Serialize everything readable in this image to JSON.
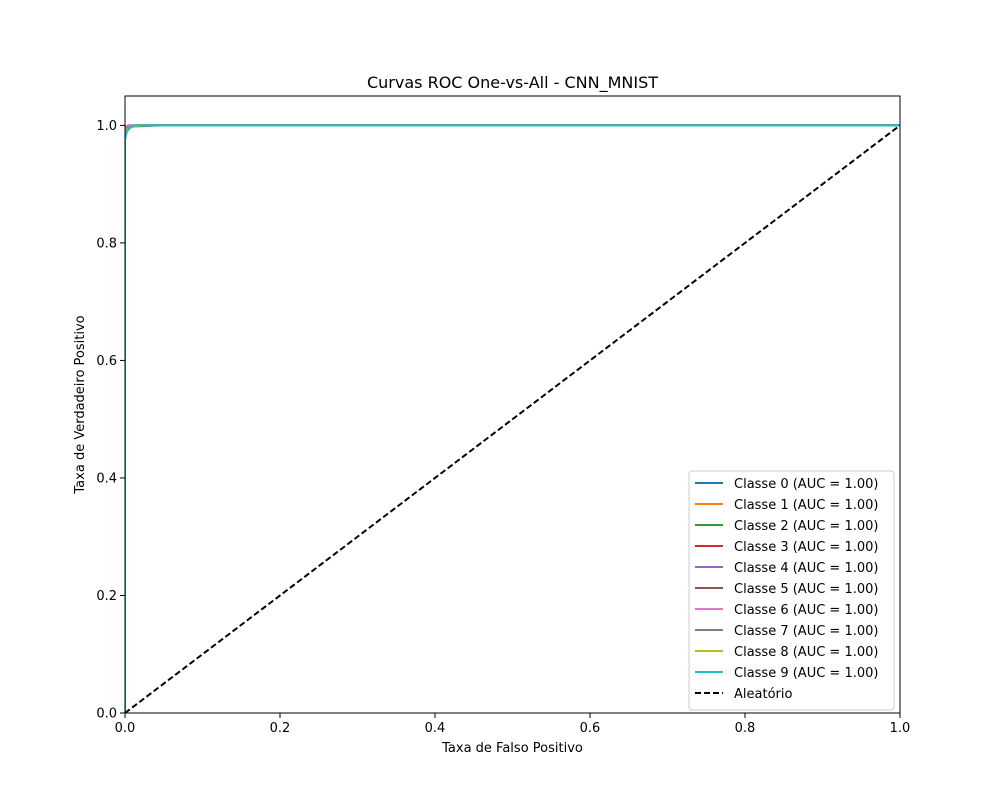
{
  "chart_data": {
    "type": "line",
    "title": "Curvas ROC One-vs-All - CNN_MNIST",
    "xlabel": "Taxa de Falso Positivo",
    "ylabel": "Taxa de Verdadeiro Positivo",
    "xlim": [
      0.0,
      1.0
    ],
    "ylim": [
      0.0,
      1.05
    ],
    "x_ticks": [
      0.0,
      0.2,
      0.4,
      0.6,
      0.8,
      1.0
    ],
    "y_ticks": [
      0.0,
      0.2,
      0.4,
      0.6,
      0.8,
      1.0
    ],
    "x_tick_labels": [
      "0.0",
      "0.2",
      "0.4",
      "0.6",
      "0.8",
      "1.0"
    ],
    "y_tick_labels": [
      "0.0",
      "0.2",
      "0.4",
      "0.6",
      "0.8",
      "1.0"
    ],
    "grid": false,
    "legend_position": "lower-right",
    "series": [
      {
        "name": "Classe 0 (AUC = 1.00)",
        "color": "#1f77b4",
        "style": "solid",
        "points": [
          [
            0.0,
            0.0
          ],
          [
            0.0,
            0.992
          ],
          [
            0.001,
            0.996
          ],
          [
            0.003,
            0.999
          ],
          [
            0.006,
            1.0
          ],
          [
            1.0,
            1.0
          ]
        ]
      },
      {
        "name": "Classe 1 (AUC = 1.00)",
        "color": "#ff7f0e",
        "style": "solid",
        "points": [
          [
            0.0,
            0.0
          ],
          [
            0.0,
            0.995
          ],
          [
            0.001,
            0.998
          ],
          [
            0.004,
            1.0
          ],
          [
            1.0,
            1.0
          ]
        ]
      },
      {
        "name": "Classe 2 (AUC = 1.00)",
        "color": "#2ca02c",
        "style": "solid",
        "points": [
          [
            0.0,
            0.0
          ],
          [
            0.0,
            0.988
          ],
          [
            0.002,
            0.995
          ],
          [
            0.006,
            0.998
          ],
          [
            0.015,
            1.0
          ],
          [
            1.0,
            1.0
          ]
        ]
      },
      {
        "name": "Classe 3 (AUC = 1.00)",
        "color": "#d62728",
        "style": "solid",
        "points": [
          [
            0.0,
            0.0
          ],
          [
            0.0,
            0.99
          ],
          [
            0.002,
            0.996
          ],
          [
            0.008,
            0.999
          ],
          [
            0.02,
            1.0
          ],
          [
            1.0,
            1.0
          ]
        ]
      },
      {
        "name": "Classe 4 (AUC = 1.00)",
        "color": "#9467bd",
        "style": "solid",
        "points": [
          [
            0.0,
            0.0
          ],
          [
            0.0,
            0.991
          ],
          [
            0.002,
            0.997
          ],
          [
            0.007,
            1.0
          ],
          [
            1.0,
            1.0
          ]
        ]
      },
      {
        "name": "Classe 5 (AUC = 1.00)",
        "color": "#8c564b",
        "style": "solid",
        "points": [
          [
            0.0,
            0.0
          ],
          [
            0.0,
            0.985
          ],
          [
            0.003,
            0.994
          ],
          [
            0.01,
            0.998
          ],
          [
            0.048,
            1.0
          ],
          [
            1.0,
            1.0
          ]
        ]
      },
      {
        "name": "Classe 6 (AUC = 1.00)",
        "color": "#e377c2",
        "style": "solid",
        "points": [
          [
            0.0,
            0.0
          ],
          [
            0.0,
            0.989
          ],
          [
            0.002,
            0.996
          ],
          [
            0.01,
            1.0
          ],
          [
            1.0,
            1.0
          ]
        ]
      },
      {
        "name": "Classe 7 (AUC = 1.00)",
        "color": "#7f7f7f",
        "style": "solid",
        "points": [
          [
            0.0,
            0.0
          ],
          [
            0.0,
            0.987
          ],
          [
            0.003,
            0.995
          ],
          [
            0.012,
            0.999
          ],
          [
            0.03,
            1.0
          ],
          [
            1.0,
            1.0
          ]
        ]
      },
      {
        "name": "Classe 8 (AUC = 1.00)",
        "color": "#bcbd22",
        "style": "solid",
        "points": [
          [
            0.0,
            0.0
          ],
          [
            0.0,
            0.982
          ],
          [
            0.003,
            0.993
          ],
          [
            0.01,
            0.998
          ],
          [
            0.025,
            1.0
          ],
          [
            1.0,
            1.0
          ]
        ]
      },
      {
        "name": "Classe 9 (AUC = 1.00)",
        "color": "#17becf",
        "style": "solid",
        "points": [
          [
            0.0,
            0.0
          ],
          [
            0.0,
            0.975
          ],
          [
            0.002,
            0.988
          ],
          [
            0.006,
            0.996
          ],
          [
            0.015,
            1.0
          ],
          [
            1.0,
            1.0
          ]
        ]
      },
      {
        "name": "Aleatório",
        "color": "#000000",
        "style": "dashed",
        "points": [
          [
            0.0,
            0.0
          ],
          [
            1.0,
            1.0
          ]
        ]
      }
    ]
  }
}
